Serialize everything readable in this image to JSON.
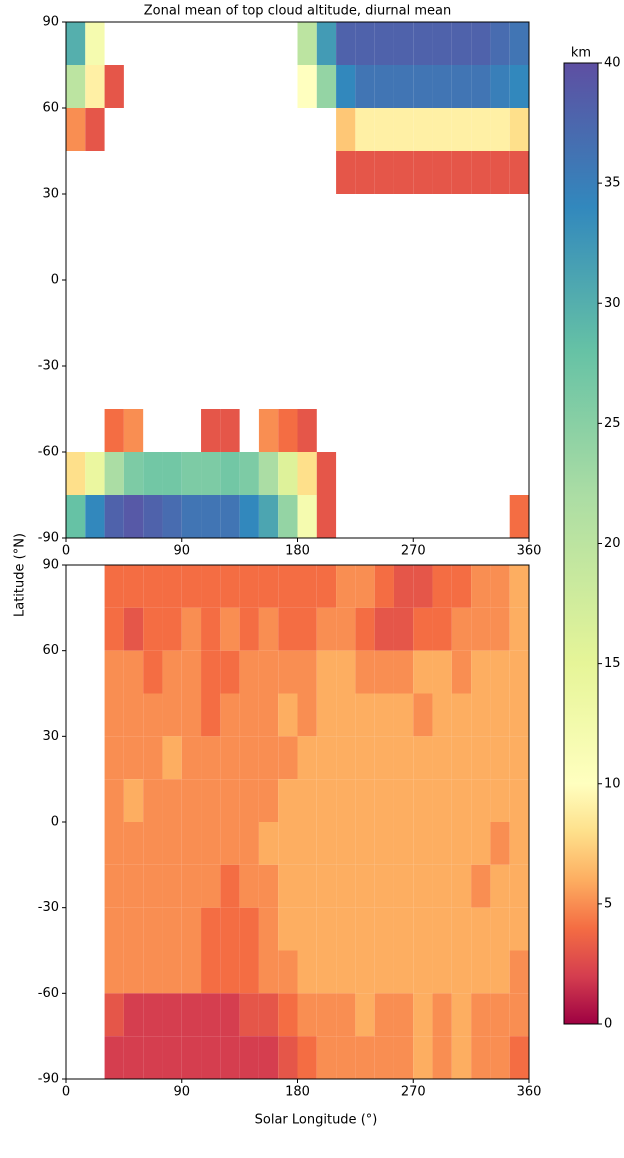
{
  "shared": {
    "x_label": "Solar Longitude (°)",
    "y_label": "Latitude (°N)",
    "colorbar": {
      "label": "km",
      "lim": [
        0,
        40
      ],
      "ticks": [
        0,
        5,
        10,
        15,
        20,
        25,
        30,
        35,
        40
      ],
      "colormap": [
        {
          "value": 0,
          "color": "#9e0142"
        },
        {
          "value": 2,
          "color": "#d53e4f"
        },
        {
          "value": 4,
          "color": "#f46d43"
        },
        {
          "value": 6,
          "color": "#fdae61"
        },
        {
          "value": 8,
          "color": "#fee08b"
        },
        {
          "value": 10,
          "color": "#ffffbf"
        },
        {
          "value": 15,
          "color": "#e6f598"
        },
        {
          "value": 22,
          "color": "#abdda4"
        },
        {
          "value": 28,
          "color": "#66c2a5"
        },
        {
          "value": 34,
          "color": "#3288bd"
        },
        {
          "value": 40,
          "color": "#5e4fa2"
        }
      ]
    }
  },
  "chart_data": [
    {
      "type": "heatmap",
      "title": "Zonal mean of top cloud altitude, diurnal mean",
      "xbins": [
        0,
        15,
        30,
        45,
        60,
        75,
        90,
        105,
        120,
        135,
        150,
        165,
        180,
        195,
        210,
        225,
        240,
        255,
        270,
        285,
        300,
        315,
        330,
        345,
        360
      ],
      "ybins": [
        90,
        75,
        60,
        45,
        30,
        15,
        0,
        -15,
        -30,
        -45,
        -60,
        -75,
        -90
      ],
      "xlim": [
        0,
        360
      ],
      "ylim": [
        -90,
        90
      ],
      "xticks": [
        0,
        90,
        180,
        270,
        360
      ],
      "yticks": [
        -90,
        -60,
        -30,
        0,
        30,
        60,
        90
      ],
      "values": [
        [
          30,
          12,
          null,
          null,
          null,
          null,
          null,
          null,
          null,
          null,
          null,
          null,
          20,
          32,
          38,
          38,
          38,
          38,
          38,
          38,
          38,
          38,
          37,
          36
        ],
        [
          20,
          9,
          3,
          null,
          null,
          null,
          null,
          null,
          null,
          null,
          null,
          null,
          10,
          24,
          34,
          36,
          36,
          36,
          36,
          36,
          36,
          36,
          35,
          34
        ],
        [
          5,
          3,
          null,
          null,
          null,
          null,
          null,
          null,
          null,
          null,
          null,
          null,
          null,
          null,
          7,
          9,
          9,
          9,
          9,
          9,
          9,
          9,
          9,
          8
        ],
        [
          null,
          null,
          null,
          null,
          null,
          null,
          null,
          null,
          null,
          null,
          null,
          null,
          null,
          null,
          3,
          3,
          3,
          3,
          3,
          3,
          3,
          3,
          3,
          3
        ],
        [
          null,
          null,
          null,
          null,
          null,
          null,
          null,
          null,
          null,
          null,
          null,
          null,
          null,
          null,
          null,
          null,
          null,
          null,
          null,
          null,
          null,
          null,
          null,
          null
        ],
        [
          null,
          null,
          null,
          null,
          null,
          null,
          null,
          null,
          null,
          null,
          null,
          null,
          null,
          null,
          null,
          null,
          null,
          null,
          null,
          null,
          null,
          null,
          null,
          null
        ],
        [
          null,
          null,
          null,
          null,
          null,
          null,
          null,
          null,
          null,
          null,
          null,
          null,
          null,
          null,
          null,
          null,
          null,
          null,
          null,
          null,
          null,
          null,
          null,
          null
        ],
        [
          null,
          null,
          null,
          null,
          null,
          null,
          null,
          null,
          null,
          null,
          null,
          null,
          null,
          null,
          null,
          null,
          null,
          null,
          null,
          null,
          null,
          null,
          null,
          null
        ],
        [
          null,
          null,
          null,
          null,
          null,
          null,
          null,
          null,
          null,
          null,
          null,
          null,
          null,
          null,
          null,
          null,
          null,
          null,
          null,
          null,
          null,
          null,
          null,
          null
        ],
        [
          null,
          null,
          4,
          5,
          null,
          null,
          null,
          3,
          3,
          null,
          5,
          4,
          3,
          null,
          null,
          null,
          null,
          null,
          null,
          null,
          null,
          null,
          null,
          null
        ],
        [
          8,
          14,
          22,
          26,
          27,
          27,
          26,
          26,
          27,
          26,
          22,
          16,
          8,
          3,
          null,
          null,
          null,
          null,
          null,
          null,
          null,
          null,
          null,
          null
        ],
        [
          28,
          34,
          38,
          39,
          38,
          37,
          36,
          36,
          36,
          34,
          31,
          24,
          12,
          3,
          null,
          null,
          null,
          null,
          null,
          null,
          null,
          null,
          null,
          4
        ]
      ]
    },
    {
      "type": "heatmap",
      "xbins": [
        0,
        15,
        30,
        45,
        60,
        75,
        90,
        105,
        120,
        135,
        150,
        165,
        180,
        195,
        210,
        225,
        240,
        255,
        270,
        285,
        300,
        315,
        330,
        345,
        360
      ],
      "ybins": [
        90,
        75,
        60,
        45,
        30,
        15,
        0,
        -15,
        -30,
        -45,
        -60,
        -75,
        -90
      ],
      "xlim": [
        0,
        360
      ],
      "ylim": [
        -90,
        90
      ],
      "xticks": [
        0,
        90,
        180,
        270,
        360
      ],
      "yticks": [
        -90,
        -60,
        -30,
        0,
        30,
        60,
        90
      ],
      "values": [
        [
          null,
          null,
          4,
          4,
          4,
          4,
          4,
          4,
          4,
          4,
          4,
          4,
          4,
          4,
          5,
          5,
          4,
          3,
          3,
          4,
          4,
          5,
          5,
          6
        ],
        [
          null,
          null,
          4,
          3,
          4,
          4,
          5,
          4,
          5,
          4,
          5,
          4,
          4,
          5,
          5,
          4,
          3,
          3,
          4,
          4,
          5,
          5,
          5,
          6
        ],
        [
          null,
          null,
          5,
          5,
          4,
          5,
          5,
          4,
          4,
          5,
          5,
          5,
          5,
          6,
          6,
          5,
          5,
          5,
          6,
          6,
          5,
          6,
          6,
          6
        ],
        [
          null,
          null,
          5,
          5,
          5,
          5,
          5,
          4,
          5,
          5,
          5,
          6,
          5,
          6,
          6,
          6,
          6,
          6,
          5,
          6,
          6,
          6,
          6,
          6
        ],
        [
          null,
          null,
          5,
          5,
          5,
          6,
          5,
          5,
          5,
          5,
          5,
          5,
          6,
          6,
          6,
          6,
          6,
          6,
          6,
          6,
          6,
          6,
          6,
          6
        ],
        [
          null,
          null,
          5,
          6,
          5,
          5,
          5,
          5,
          5,
          5,
          5,
          6,
          6,
          6,
          6,
          6,
          6,
          6,
          6,
          6,
          6,
          6,
          6,
          6
        ],
        [
          null,
          null,
          5,
          5,
          5,
          5,
          5,
          5,
          5,
          5,
          6,
          6,
          6,
          6,
          6,
          6,
          6,
          6,
          6,
          6,
          6,
          6,
          5,
          6
        ],
        [
          null,
          null,
          5,
          5,
          5,
          5,
          5,
          5,
          4,
          5,
          5,
          6,
          6,
          6,
          6,
          6,
          6,
          6,
          6,
          6,
          6,
          5,
          6,
          6
        ],
        [
          null,
          null,
          5,
          5,
          5,
          5,
          5,
          4,
          4,
          4,
          5,
          6,
          6,
          6,
          6,
          6,
          6,
          6,
          6,
          6,
          6,
          6,
          6,
          6
        ],
        [
          null,
          null,
          5,
          5,
          5,
          5,
          5,
          4,
          4,
          4,
          5,
          5,
          6,
          6,
          6,
          6,
          6,
          6,
          6,
          6,
          6,
          6,
          6,
          5
        ],
        [
          null,
          null,
          3,
          2,
          2,
          2,
          2,
          2,
          2,
          3,
          3,
          4,
          5,
          5,
          5,
          6,
          5,
          5,
          6,
          5,
          6,
          5,
          5,
          5
        ],
        [
          null,
          null,
          2,
          2,
          2,
          2,
          2,
          2,
          2,
          2,
          2,
          3,
          4,
          5,
          5,
          5,
          5,
          5,
          6,
          5,
          6,
          5,
          5,
          4
        ]
      ]
    }
  ]
}
